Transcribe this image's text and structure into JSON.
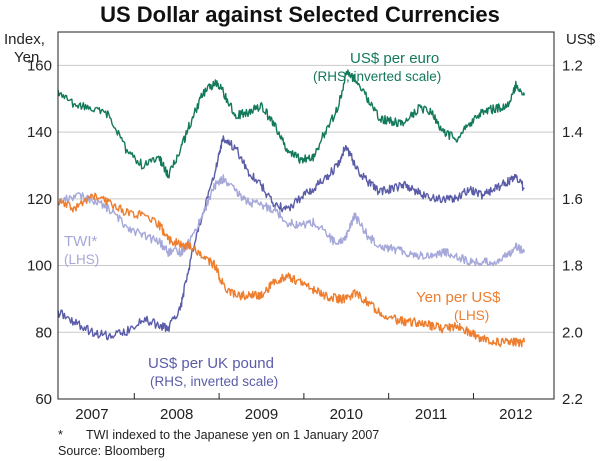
{
  "chart_data": {
    "type": "line",
    "title": "US Dollar against Selected Currencies",
    "left_axis": {
      "label_line1": "Index,",
      "label_line2": "Yen",
      "ticks": [
        60,
        80,
        100,
        120,
        140,
        160
      ],
      "ylim": [
        60,
        170
      ]
    },
    "right_axis": {
      "label": "US$",
      "inverted": true,
      "ticks": [
        1.2,
        1.4,
        1.6,
        1.8,
        2.0,
        2.2
      ],
      "ylim": [
        2.2,
        1.1
      ]
    },
    "x_axis": {
      "xlim": [
        2006.6,
        2012.45
      ],
      "year_labels": [
        "2007",
        "2008",
        "2009",
        "2010",
        "2011",
        "2012"
      ],
      "year_positions": [
        2007.0,
        2008.0,
        2009.0,
        2010.0,
        2011.0,
        2012.0
      ],
      "year_boundaries": [
        2007.5,
        2008.5,
        2009.5,
        2010.5,
        2011.5
      ]
    },
    "grid": true,
    "series": [
      {
        "key": "eur",
        "name": "US$ per euro",
        "sub": "(RHS, inverted scale)",
        "axis": "right",
        "color": "#13795b",
        "x": [
          2006.6,
          2006.8,
          2007.0,
          2007.2,
          2007.4,
          2007.6,
          2007.8,
          2007.9,
          2008.05,
          2008.15,
          2008.3,
          2008.45,
          2008.55,
          2008.7,
          2008.85,
          2009.0,
          2009.15,
          2009.3,
          2009.45,
          2009.6,
          2009.75,
          2009.9,
          2010.0,
          2010.1,
          2010.25,
          2010.4,
          2010.55,
          2010.7,
          2010.85,
          2011.0,
          2011.15,
          2011.3,
          2011.45,
          2011.6,
          2011.75,
          2011.9,
          2012.0,
          2012.1
        ],
        "y": [
          1.28,
          1.32,
          1.33,
          1.35,
          1.45,
          1.5,
          1.48,
          1.53,
          1.45,
          1.38,
          1.29,
          1.25,
          1.28,
          1.35,
          1.34,
          1.32,
          1.38,
          1.45,
          1.48,
          1.48,
          1.4,
          1.33,
          1.22,
          1.24,
          1.3,
          1.36,
          1.37,
          1.37,
          1.33,
          1.34,
          1.4,
          1.42,
          1.38,
          1.34,
          1.33,
          1.32,
          1.26,
          1.29
        ]
      },
      {
        "key": "gbp",
        "name": "US$ per UK pound",
        "sub": "(RHS, inverted scale)",
        "axis": "right",
        "color": "#5a5ca8",
        "x": [
          2006.6,
          2006.8,
          2007.0,
          2007.2,
          2007.4,
          2007.6,
          2007.8,
          2007.9,
          2008.05,
          2008.15,
          2008.3,
          2008.45,
          2008.55,
          2008.7,
          2008.85,
          2009.0,
          2009.15,
          2009.3,
          2009.45,
          2009.6,
          2009.75,
          2009.9,
          2010.0,
          2010.1,
          2010.25,
          2010.4,
          2010.55,
          2010.7,
          2010.85,
          2011.0,
          2011.15,
          2011.3,
          2011.45,
          2011.6,
          2011.75,
          2011.9,
          2012.0,
          2012.1
        ],
        "y": [
          1.94,
          1.97,
          2.0,
          2.01,
          2.0,
          1.96,
          1.98,
          1.99,
          1.92,
          1.8,
          1.65,
          1.52,
          1.42,
          1.45,
          1.52,
          1.56,
          1.62,
          1.63,
          1.6,
          1.57,
          1.54,
          1.5,
          1.44,
          1.5,
          1.55,
          1.58,
          1.57,
          1.56,
          1.58,
          1.6,
          1.6,
          1.6,
          1.57,
          1.59,
          1.57,
          1.55,
          1.53,
          1.57
        ]
      },
      {
        "key": "twi",
        "name": "TWI*",
        "sub": "(LHS)",
        "axis": "left",
        "color": "#a5a8d8",
        "x": [
          2006.6,
          2006.8,
          2007.0,
          2007.2,
          2007.4,
          2007.6,
          2007.8,
          2007.9,
          2008.05,
          2008.15,
          2008.3,
          2008.45,
          2008.55,
          2008.7,
          2008.85,
          2009.0,
          2009.15,
          2009.3,
          2009.45,
          2009.6,
          2009.75,
          2009.9,
          2010.0,
          2010.1,
          2010.25,
          2010.4,
          2010.55,
          2010.7,
          2010.85,
          2011.0,
          2011.15,
          2011.3,
          2011.45,
          2011.6,
          2011.75,
          2011.9,
          2012.0,
          2012.1
        ],
        "y": [
          119,
          121,
          120,
          117,
          112,
          109,
          107,
          104,
          104,
          107,
          115,
          124,
          126,
          122,
          119,
          118,
          117,
          113,
          112,
          113,
          110,
          106,
          109,
          115,
          109,
          106,
          105,
          104,
          103,
          103,
          104,
          103,
          101,
          101,
          101,
          103,
          106,
          104
        ]
      },
      {
        "key": "jpy",
        "name": "Yen per US$",
        "sub": "(LHS)",
        "axis": "left",
        "color": "#ee7d2e",
        "x": [
          2006.6,
          2006.8,
          2007.0,
          2007.2,
          2007.4,
          2007.6,
          2007.8,
          2007.9,
          2008.05,
          2008.15,
          2008.3,
          2008.45,
          2008.55,
          2008.7,
          2008.85,
          2009.0,
          2009.15,
          2009.3,
          2009.45,
          2009.6,
          2009.75,
          2009.9,
          2010.0,
          2010.1,
          2010.25,
          2010.4,
          2010.55,
          2010.7,
          2010.85,
          2011.0,
          2011.15,
          2011.3,
          2011.45,
          2011.6,
          2011.75,
          2011.9,
          2012.0,
          2012.1
        ],
        "y": [
          119,
          117,
          121,
          119,
          116,
          115,
          112,
          108,
          106,
          106,
          103,
          100,
          94,
          91,
          91,
          91,
          95,
          97,
          95,
          93,
          91,
          90,
          90,
          92,
          89,
          86,
          84,
          83,
          83,
          82,
          81,
          82,
          80,
          78,
          77,
          77,
          77,
          77
        ]
      }
    ]
  },
  "footnotes": {
    "note_marker": "*",
    "note": "TWI indexed to the Japanese yen on 1 January 2007",
    "source": "Source: Bloomberg"
  }
}
